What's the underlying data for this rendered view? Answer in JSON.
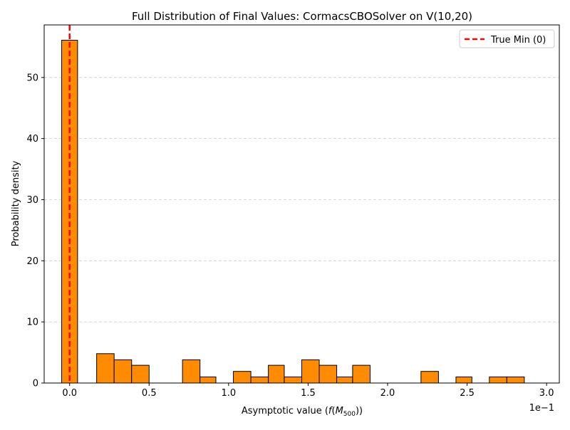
{
  "chart_data": {
    "type": "bar",
    "title": "Full Distribution of Final Values: CormacsCBOSolver on V(10,20)",
    "xlabel_main": "Asymptotic value (",
    "xlabel_f": "f",
    "xlabel_M": "M",
    "xlabel_sub": "500",
    "xlabel_close": "))",
    "ylabel": "Probability density",
    "x_offset_label": "1e−1",
    "xlim": [
      -0.16,
      3.08
    ],
    "ylim": [
      0,
      58.6
    ],
    "x_ticks": [
      0.0,
      0.5,
      1.0,
      1.5,
      2.0,
      2.5,
      3.0
    ],
    "x_tick_labels": [
      "0.0",
      "0.5",
      "1.0",
      "1.5",
      "2.0",
      "2.5",
      "3.0"
    ],
    "y_ticks": [
      0,
      10,
      20,
      30,
      40,
      50
    ],
    "y_tick_labels": [
      "0",
      "10",
      "20",
      "30",
      "40",
      "50"
    ],
    "grid": {
      "y": true,
      "x": false,
      "style": "dashed"
    },
    "bar_color": "#ff8c00",
    "edge_color": "#000000",
    "bins": [
      {
        "x0": -0.05,
        "x1": 0.05,
        "density": 56.1
      },
      {
        "x0": 0.17,
        "x1": 0.28,
        "density": 4.8
      },
      {
        "x0": 0.28,
        "x1": 0.39,
        "density": 3.8
      },
      {
        "x0": 0.39,
        "x1": 0.5,
        "density": 2.9
      },
      {
        "x0": 0.71,
        "x1": 0.82,
        "density": 3.8
      },
      {
        "x0": 0.82,
        "x1": 0.92,
        "density": 1.0
      },
      {
        "x0": 1.03,
        "x1": 1.14,
        "density": 1.9
      },
      {
        "x0": 1.14,
        "x1": 1.25,
        "density": 1.0
      },
      {
        "x0": 1.25,
        "x1": 1.35,
        "density": 2.9
      },
      {
        "x0": 1.35,
        "x1": 1.46,
        "density": 1.0
      },
      {
        "x0": 1.46,
        "x1": 1.57,
        "density": 3.8
      },
      {
        "x0": 1.57,
        "x1": 1.68,
        "density": 2.9
      },
      {
        "x0": 1.68,
        "x1": 1.78,
        "density": 1.0
      },
      {
        "x0": 1.78,
        "x1": 1.89,
        "density": 2.9
      },
      {
        "x0": 2.21,
        "x1": 2.32,
        "density": 1.9
      },
      {
        "x0": 2.43,
        "x1": 2.53,
        "density": 1.0
      },
      {
        "x0": 2.64,
        "x1": 2.75,
        "density": 1.0
      },
      {
        "x0": 2.75,
        "x1": 2.86,
        "density": 1.0
      }
    ],
    "empty_bins": [
      {
        "x0": -0.16,
        "x1": -0.05
      },
      {
        "x0": 0.05,
        "x1": 0.17
      },
      {
        "x0": 0.5,
        "x1": 0.71
      },
      {
        "x0": 0.92,
        "x1": 1.03
      },
      {
        "x0": 1.89,
        "x1": 2.21
      },
      {
        "x0": 2.32,
        "x1": 2.43
      },
      {
        "x0": 2.53,
        "x1": 2.64
      },
      {
        "x0": 2.86,
        "x1": 2.97
      }
    ],
    "reference_line": {
      "x": 0,
      "label": "True Min (0)",
      "color": "#ff0000",
      "style": "dashed"
    },
    "legend": {
      "position": "top-right",
      "entries": [
        "True Min (0)"
      ]
    }
  }
}
